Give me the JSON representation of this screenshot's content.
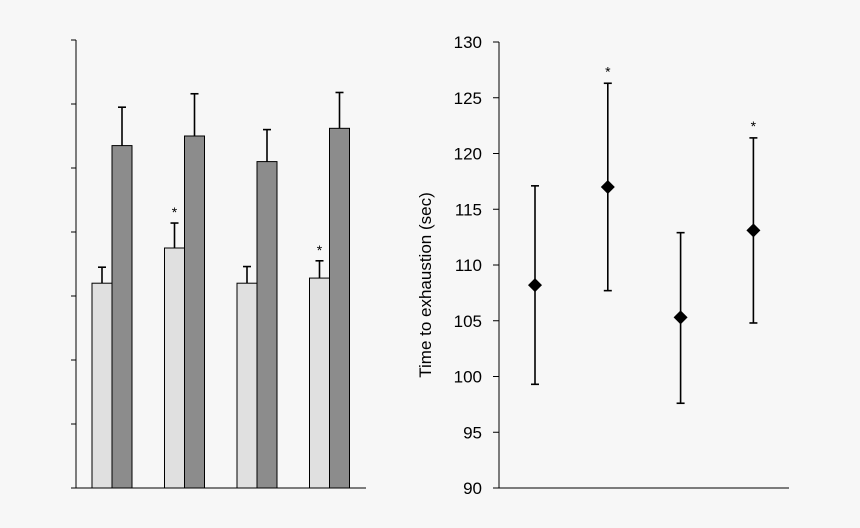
{
  "chart_data": [
    {
      "type": "bar",
      "title": "",
      "xlabel": "",
      "ylabel": "",
      "categories": [
        "",
        "",
        "",
        ""
      ],
      "ylim": [
        0,
        7
      ],
      "y_ticks": [
        0,
        1,
        2,
        3,
        4,
        5,
        6,
        7
      ],
      "y_tick_labels_visible": false,
      "grid": false,
      "series": [
        {
          "color": "#e0e0e0",
          "values": [
            3.2,
            3.75,
            3.2,
            3.28
          ],
          "errors": [
            0.25,
            0.39,
            0.26,
            0.27
          ],
          "significance": [
            "",
            "*",
            "",
            "*"
          ]
        },
        {
          "color": "#8c8c8c",
          "values": [
            5.35,
            5.5,
            5.1,
            5.62
          ],
          "errors": [
            0.6,
            0.66,
            0.5,
            0.56
          ],
          "significance": [
            "",
            "",
            "",
            ""
          ]
        }
      ]
    },
    {
      "type": "scatter",
      "title": "",
      "xlabel": "",
      "ylabel": "Time to exhaustion (sec)",
      "ylim": [
        90,
        130
      ],
      "y_ticks": [
        90,
        95,
        100,
        105,
        110,
        115,
        120,
        125,
        130
      ],
      "x": [
        1,
        2,
        3,
        4
      ],
      "values": [
        108.2,
        117.0,
        105.3,
        113.1
      ],
      "errors_upper": [
        117.1,
        126.3,
        112.9,
        121.4
      ],
      "errors_lower": [
        99.3,
        107.7,
        97.6,
        104.8
      ],
      "significance": [
        "",
        "*",
        "",
        "*"
      ],
      "marker": "diamond",
      "marker_color": "#000000",
      "grid": false
    }
  ]
}
